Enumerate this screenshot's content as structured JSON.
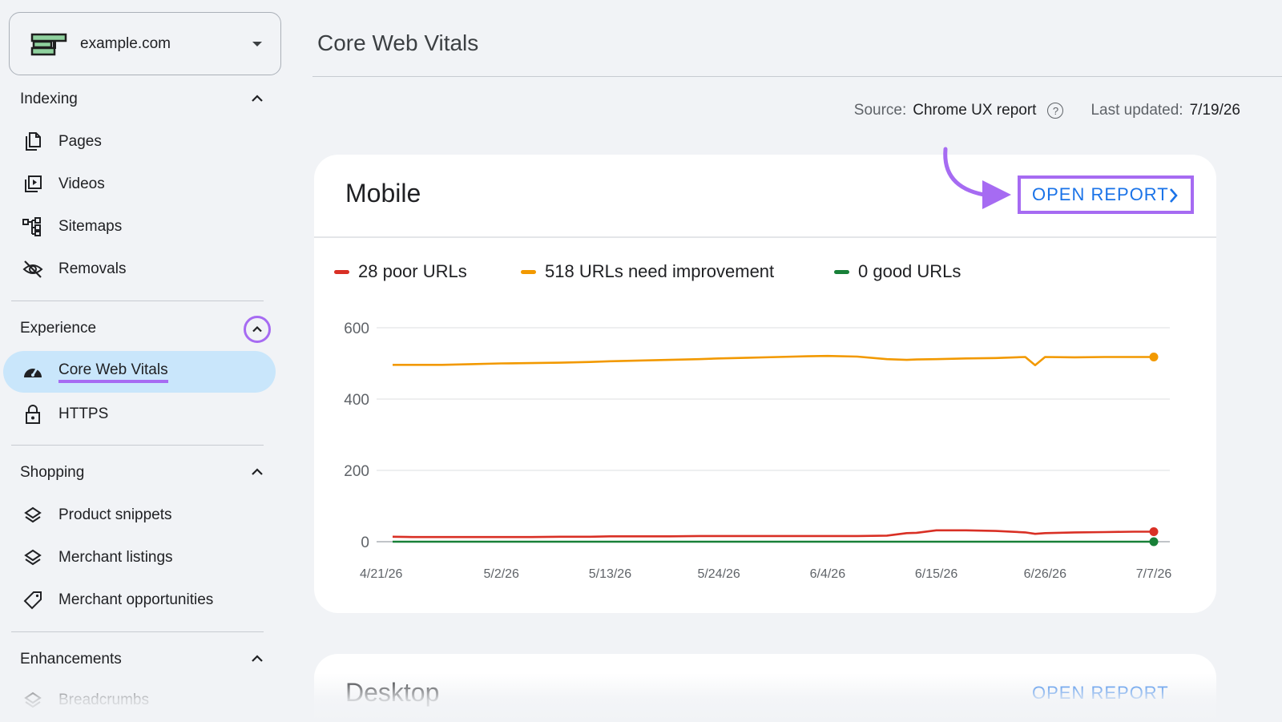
{
  "sidebar": {
    "property": {
      "name": "example.com"
    },
    "sections": [
      {
        "label": "Indexing",
        "items": [
          {
            "label": "Pages",
            "icon": "pages-icon"
          },
          {
            "label": "Videos",
            "icon": "videos-icon"
          },
          {
            "label": "Sitemaps",
            "icon": "sitemaps-icon"
          },
          {
            "label": "Removals",
            "icon": "removals-icon"
          }
        ]
      },
      {
        "label": "Experience",
        "items": [
          {
            "label": "Core Web Vitals",
            "icon": "speedometer-icon",
            "active": true
          },
          {
            "label": "HTTPS",
            "icon": "lock-icon"
          }
        ]
      },
      {
        "label": "Shopping",
        "items": [
          {
            "label": "Product snippets",
            "icon": "layers-icon"
          },
          {
            "label": "Merchant listings",
            "icon": "layers-icon"
          },
          {
            "label": "Merchant opportunities",
            "icon": "tag-icon"
          }
        ]
      },
      {
        "label": "Enhancements",
        "items": [
          {
            "label": "Breadcrumbs",
            "icon": "layers-icon"
          }
        ]
      }
    ]
  },
  "header": {
    "title": "Core Web Vitals",
    "source_label": "Source:",
    "source_value": "Chrome UX report",
    "updated_label": "Last updated:",
    "updated_value": "7/19/26"
  },
  "mobile_card": {
    "title": "Mobile",
    "open_report": "OPEN REPORT",
    "legend": [
      {
        "label": "28 poor URLs",
        "color": "#d93025"
      },
      {
        "label": "518 URLs need improvement",
        "color": "#f29900"
      },
      {
        "label": "0 good URLs",
        "color": "#188038"
      }
    ]
  },
  "desktop_card": {
    "title": "Desktop",
    "open_report": "OPEN REPORT"
  },
  "colors": {
    "accent": "#a66bf2",
    "link": "#1a73e8",
    "active_bg": "#c9e6fb"
  },
  "chart_data": {
    "type": "line",
    "x": [
      "4/21/26",
      "4/23/26",
      "4/26/26",
      "4/29/26",
      "5/2/26",
      "5/5/26",
      "5/8/26",
      "5/11/26",
      "5/13/26",
      "5/16/26",
      "5/19/26",
      "5/22/26",
      "5/24/26",
      "5/27/26",
      "5/30/26",
      "6/2/26",
      "6/4/26",
      "6/7/26",
      "6/10/26",
      "6/12/26",
      "6/13/26",
      "6/15/26",
      "6/18/26",
      "6/21/26",
      "6/24/26",
      "6/25/26",
      "6/26/26",
      "6/29/26",
      "7/2/26",
      "7/5/26",
      "7/7/26"
    ],
    "x_tick_labels": [
      "4/21/26",
      "5/2/26",
      "5/13/26",
      "5/24/26",
      "6/4/26",
      "6/15/26",
      "6/26/26",
      "7/7/26"
    ],
    "series": [
      {
        "name": "28 poor URLs",
        "color": "#d93025",
        "values": [
          14,
          13,
          13,
          13,
          13,
          13,
          14,
          14,
          15,
          15,
          15,
          16,
          16,
          16,
          16,
          16,
          16,
          16,
          17,
          24,
          25,
          32,
          32,
          30,
          26,
          22,
          24,
          26,
          27,
          28,
          28
        ]
      },
      {
        "name": "518 URLs need improvement",
        "color": "#f29900",
        "values": [
          496,
          496,
          496,
          498,
          500,
          501,
          502,
          504,
          506,
          508,
          510,
          512,
          514,
          516,
          518,
          520,
          521,
          519,
          512,
          510,
          511,
          512,
          514,
          515,
          518,
          495,
          518,
          517,
          518,
          518,
          518
        ]
      },
      {
        "name": "0 good URLs",
        "color": "#188038",
        "values": [
          0,
          0,
          0,
          0,
          0,
          0,
          0,
          0,
          0,
          0,
          0,
          0,
          0,
          0,
          0,
          0,
          0,
          0,
          0,
          0,
          0,
          0,
          0,
          0,
          0,
          0,
          0,
          0,
          0,
          0,
          0
        ]
      }
    ],
    "y_ticks": [
      "600",
      "400",
      "200",
      "0"
    ],
    "ylim": [
      0,
      600
    ],
    "grid": true,
    "legend": "top-left"
  }
}
